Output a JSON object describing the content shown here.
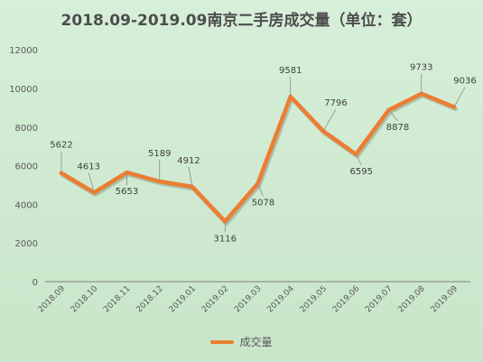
{
  "title": "2018.09-2019.09南京二手房成交量（单位：套）",
  "chart_data": {
    "type": "line",
    "title": "2018.09-2019.09南京二手房成交量（单位：套）",
    "categories": [
      "2018.09",
      "2018.10",
      "2018.11",
      "2018.12",
      "2019.01",
      "2019.02",
      "2019.03",
      "2019.04",
      "2019.05",
      "2019.06",
      "2019.07",
      "2019.08",
      "2019.09"
    ],
    "series": [
      {
        "name": "成交量",
        "values": [
          5622,
          4613,
          5653,
          5189,
          4912,
          3116,
          5078,
          9581,
          7796,
          6595,
          8878,
          9733,
          9036
        ]
      }
    ],
    "ylim": [
      0,
      12000
    ],
    "yticks": [
      "0",
      "2000",
      "4000",
      "6000",
      "8000",
      "10000",
      "12000"
    ],
    "grid": false,
    "legend_position": "bottom",
    "line_color": "#ed7d31",
    "label_color": "#404040",
    "axis_color": "#7f7f7f"
  }
}
